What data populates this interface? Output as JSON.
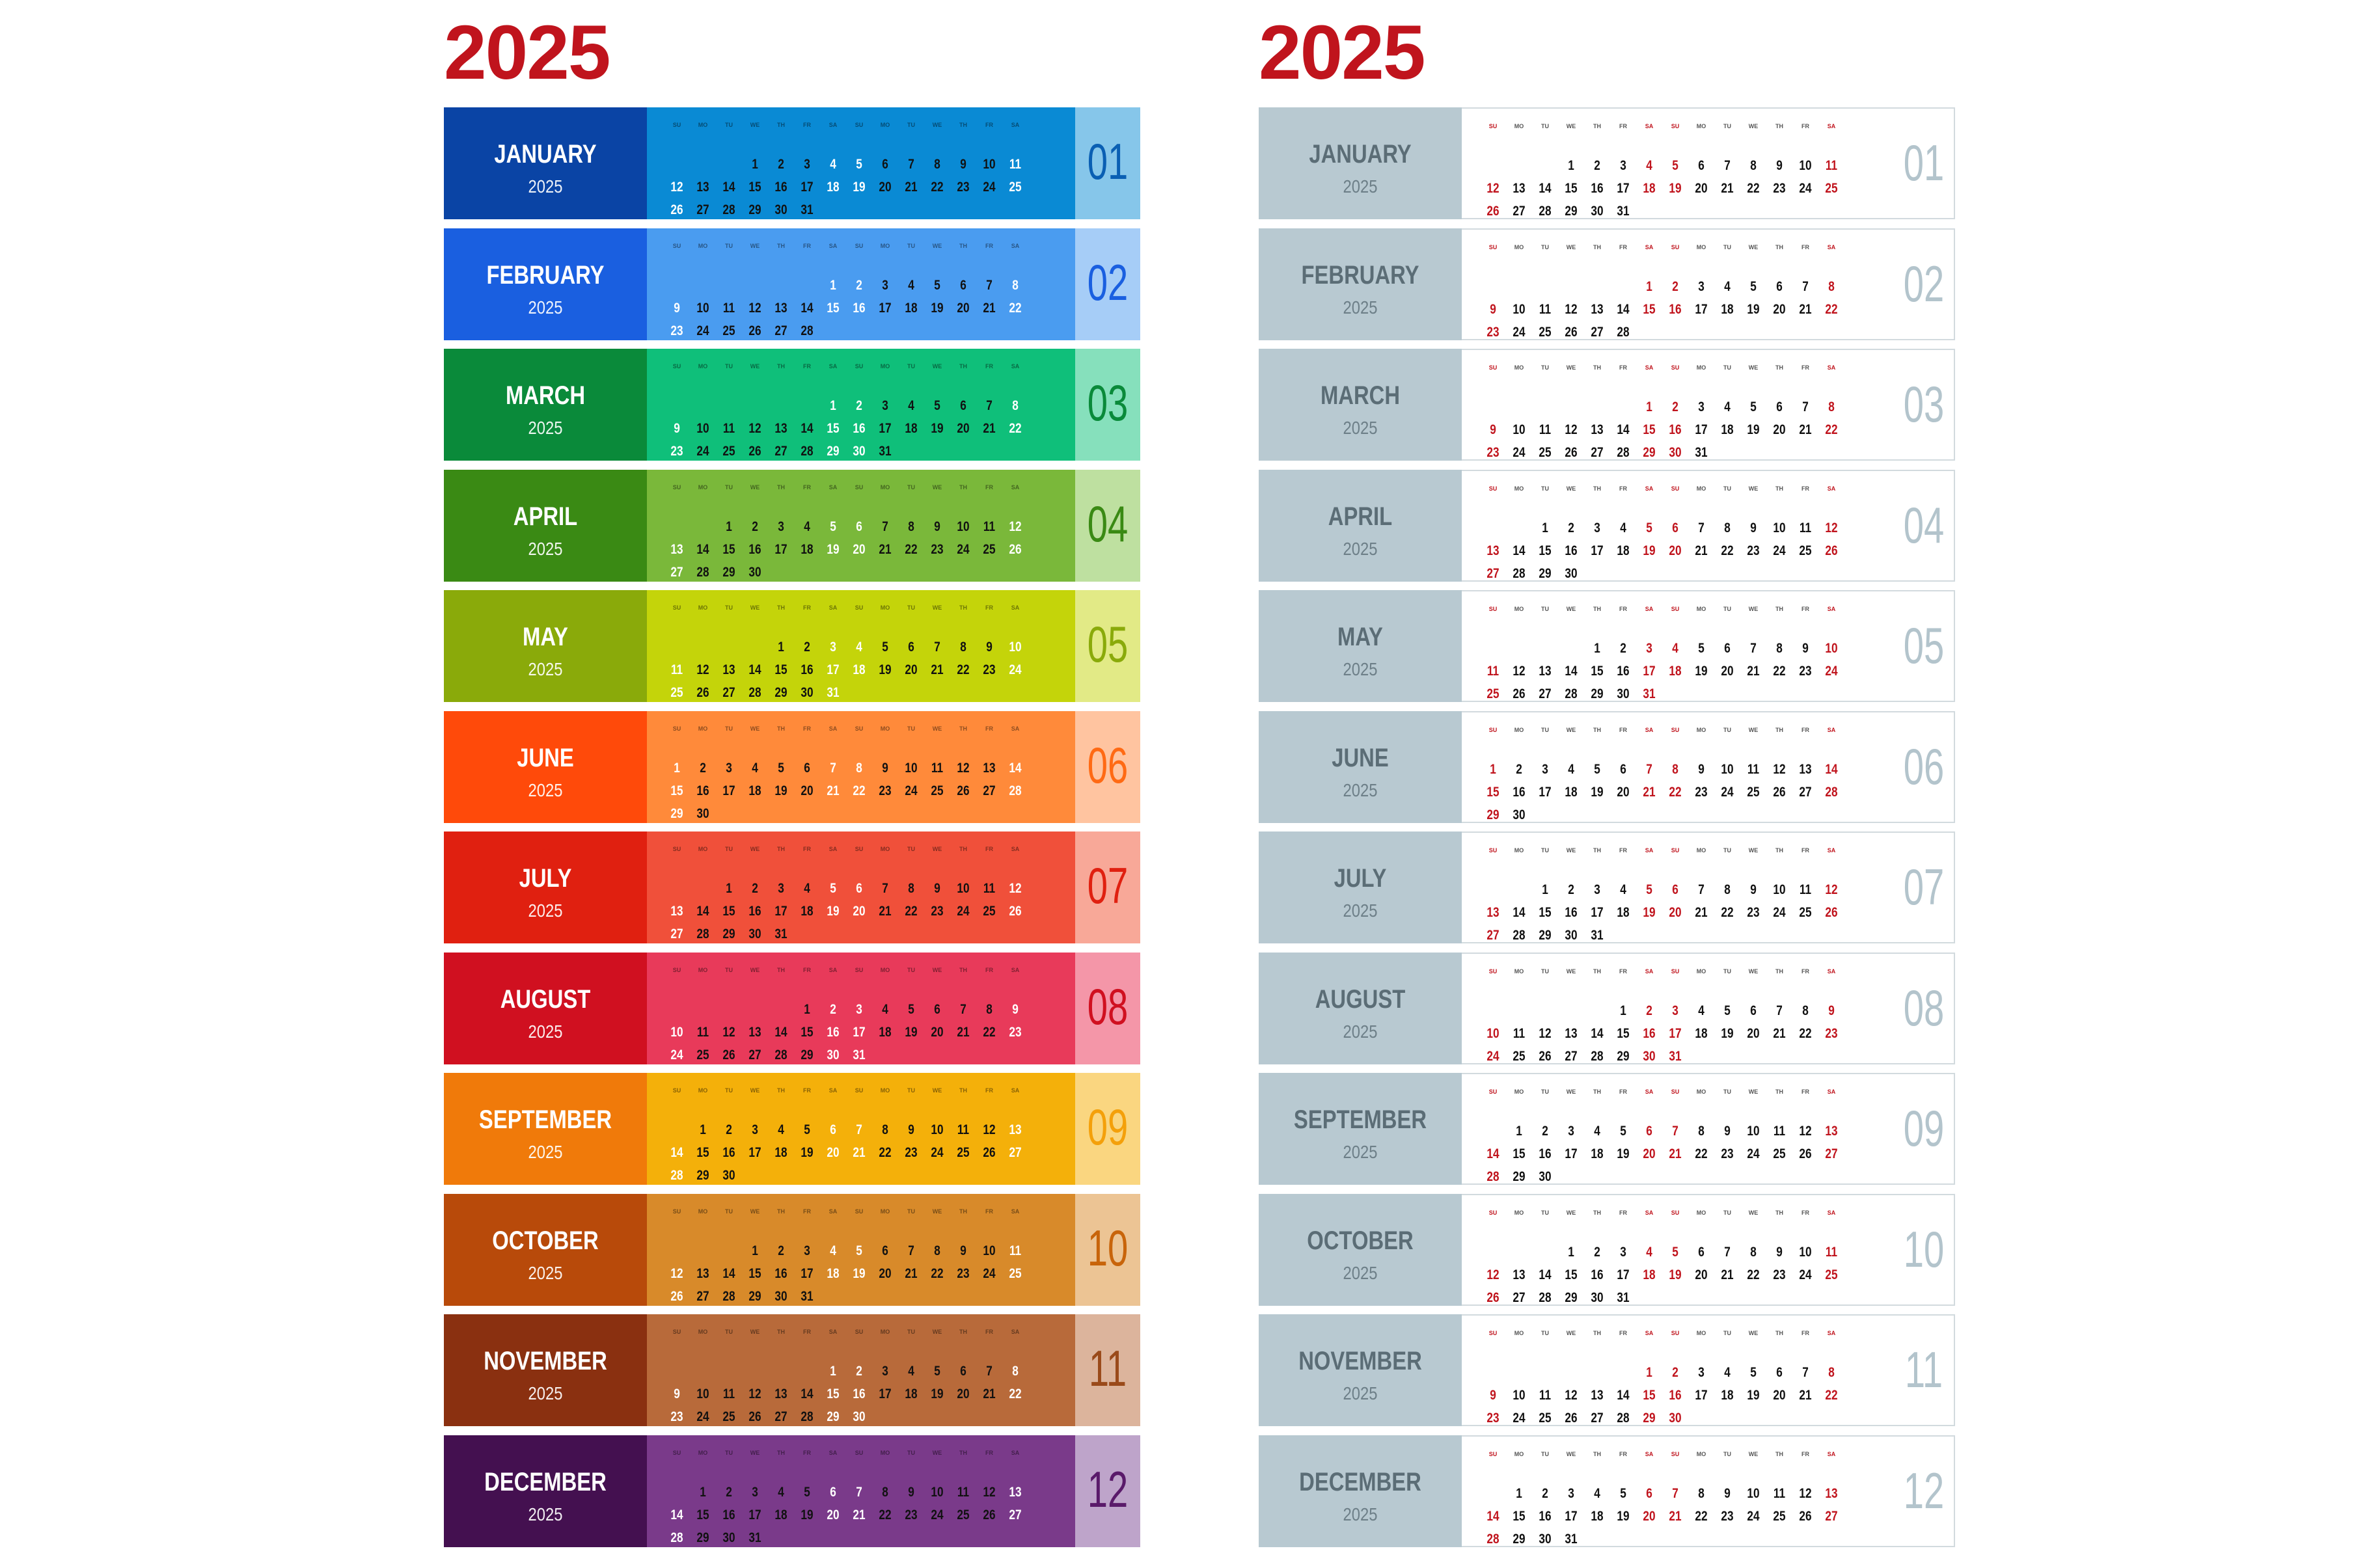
{
  "left_panel": {
    "year_title": "2025"
  },
  "right_panel": {
    "year_title": "2025"
  },
  "weekday_labels": [
    "SU",
    "MO",
    "TU",
    "WE",
    "TH",
    "FR",
    "SA",
    "SU",
    "MO",
    "TU",
    "WE",
    "TH",
    "FR",
    "SA"
  ],
  "months": [
    {
      "name": "JANUARY",
      "year": "2025",
      "number": "01",
      "start": 3,
      "days": 31,
      "colors": {
        "name": "#0a44a5",
        "grid": "#0a8ad4",
        "num": "#86c6ea",
        "numtext": "#0a5fb3"
      }
    },
    {
      "name": "FEBRUARY",
      "year": "2025",
      "number": "02",
      "start": 6,
      "days": 28,
      "colors": {
        "name": "#1a5fe0",
        "grid": "#4a9cf0",
        "num": "#a6cdf7",
        "numtext": "#1a5fe0"
      }
    },
    {
      "name": "MARCH",
      "year": "2025",
      "number": "03",
      "start": 6,
      "days": 31,
      "colors": {
        "name": "#0a8a3a",
        "grid": "#0fbf7a",
        "num": "#86e0bc",
        "numtext": "#0a8a3a"
      }
    },
    {
      "name": "APRIL",
      "year": "2025",
      "number": "04",
      "start": 2,
      "days": 30,
      "colors": {
        "name": "#3a8a14",
        "grid": "#7ab83a",
        "num": "#bee0a0",
        "numtext": "#3a8a14"
      }
    },
    {
      "name": "MAY",
      "year": "2025",
      "number": "05",
      "start": 4,
      "days": 31,
      "colors": {
        "name": "#8aaa0a",
        "grid": "#c4d40a",
        "num": "#e2ea86",
        "numtext": "#8aaa0a"
      }
    },
    {
      "name": "JUNE",
      "year": "2025",
      "number": "06",
      "start": 0,
      "days": 30,
      "colors": {
        "name": "#ff4a0a",
        "grid": "#ff8a3a",
        "num": "#ffc4a0",
        "numtext": "#ff6a14"
      }
    },
    {
      "name": "JULY",
      "year": "2025",
      "number": "07",
      "start": 2,
      "days": 31,
      "colors": {
        "name": "#e02010",
        "grid": "#f0503a",
        "num": "#f8a898",
        "numtext": "#e02010"
      }
    },
    {
      "name": "AUGUST",
      "year": "2025",
      "number": "08",
      "start": 5,
      "days": 31,
      "colors": {
        "name": "#d01020",
        "grid": "#e83a5a",
        "num": "#f496a8",
        "numtext": "#d01020"
      }
    },
    {
      "name": "SEPTEMBER",
      "year": "2025",
      "number": "09",
      "start": 1,
      "days": 30,
      "colors": {
        "name": "#f07a0a",
        "grid": "#f4b00a",
        "num": "#fad680",
        "numtext": "#f4a00a"
      }
    },
    {
      "name": "OCTOBER",
      "year": "2025",
      "number": "10",
      "start": 3,
      "days": 31,
      "colors": {
        "name": "#b84a0a",
        "grid": "#d88a2a",
        "num": "#ecc494",
        "numtext": "#c8640a"
      }
    },
    {
      "name": "NOVEMBER",
      "year": "2025",
      "number": "11",
      "start": 6,
      "days": 30,
      "colors": {
        "name": "#8a3010",
        "grid": "#b86a3a",
        "num": "#dcb49c",
        "numtext": "#9a4a1a"
      }
    },
    {
      "name": "DECEMBER",
      "year": "2025",
      "number": "12",
      "start": 1,
      "days": 31,
      "colors": {
        "name": "#441050",
        "grid": "#7a3a8a",
        "num": "#bea4ca",
        "numtext": "#5a1a6a"
      }
    }
  ],
  "right_colors": {
    "weekday": "#111111",
    "weekend": "#c0141d"
  }
}
